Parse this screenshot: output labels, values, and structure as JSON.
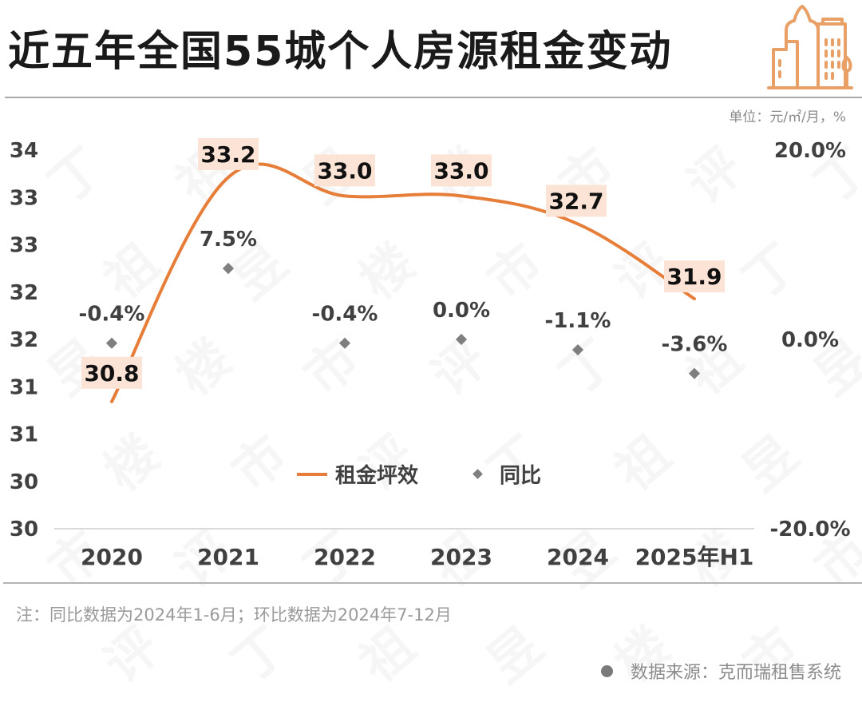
{
  "header": {
    "title": "近五年全国55城个人房源租金变动",
    "unit": "单位：元/㎡/月，%",
    "logo_icon": "city-buildings-icon",
    "accent_color": "#E9A066"
  },
  "watermark": {
    "chars": [
      "丁",
      "祖",
      "昱",
      "楼",
      "市",
      "评"
    ]
  },
  "chart_data": {
    "type": "line",
    "title": "近五年全国55城个人房源租金变动",
    "categories": [
      "2020",
      "2021",
      "2022",
      "2023",
      "2024",
      "2025年H1"
    ],
    "series": [
      {
        "name": "租金坪效",
        "type": "line",
        "axis": "left",
        "color": "#E67E3A",
        "values": [
          30.8,
          33.2,
          33.0,
          33.0,
          32.7,
          31.9
        ],
        "labels": [
          "30.8",
          "33.2",
          "33.0",
          "33.0",
          "32.7",
          "31.9"
        ]
      },
      {
        "name": "同比",
        "type": "scatter",
        "axis": "right",
        "color": "#7f7f7f",
        "values": [
          -0.4,
          7.5,
          -0.4,
          0.0,
          -1.1,
          -3.6
        ],
        "labels": [
          "-0.4%",
          "7.5%",
          "-0.4%",
          "0.0%",
          "-1.1%",
          "-3.6%"
        ]
      }
    ],
    "left_axis": {
      "range": [
        29.44,
        33.49
      ],
      "tick_labels": [
        "30",
        "30",
        "31",
        "31",
        "32",
        "32",
        "33",
        "33",
        "34"
      ]
    },
    "right_axis": {
      "range": [
        -20,
        20
      ],
      "tick_values": [
        -20,
        0,
        20
      ],
      "tick_labels": [
        "-20.0%",
        "0.0%",
        "20.0%"
      ]
    },
    "xlabel": "",
    "ylabel": "",
    "grid": false,
    "legend": {
      "position": "bottom-center",
      "entries": [
        "租金坪效",
        "同比"
      ]
    },
    "label_box_color": "#FBE3D6"
  },
  "footer": {
    "note": "注：同比数据为2024年1-6月；环比数据为2024年7-12月",
    "source": "数据来源：克而瑞租售系统"
  }
}
